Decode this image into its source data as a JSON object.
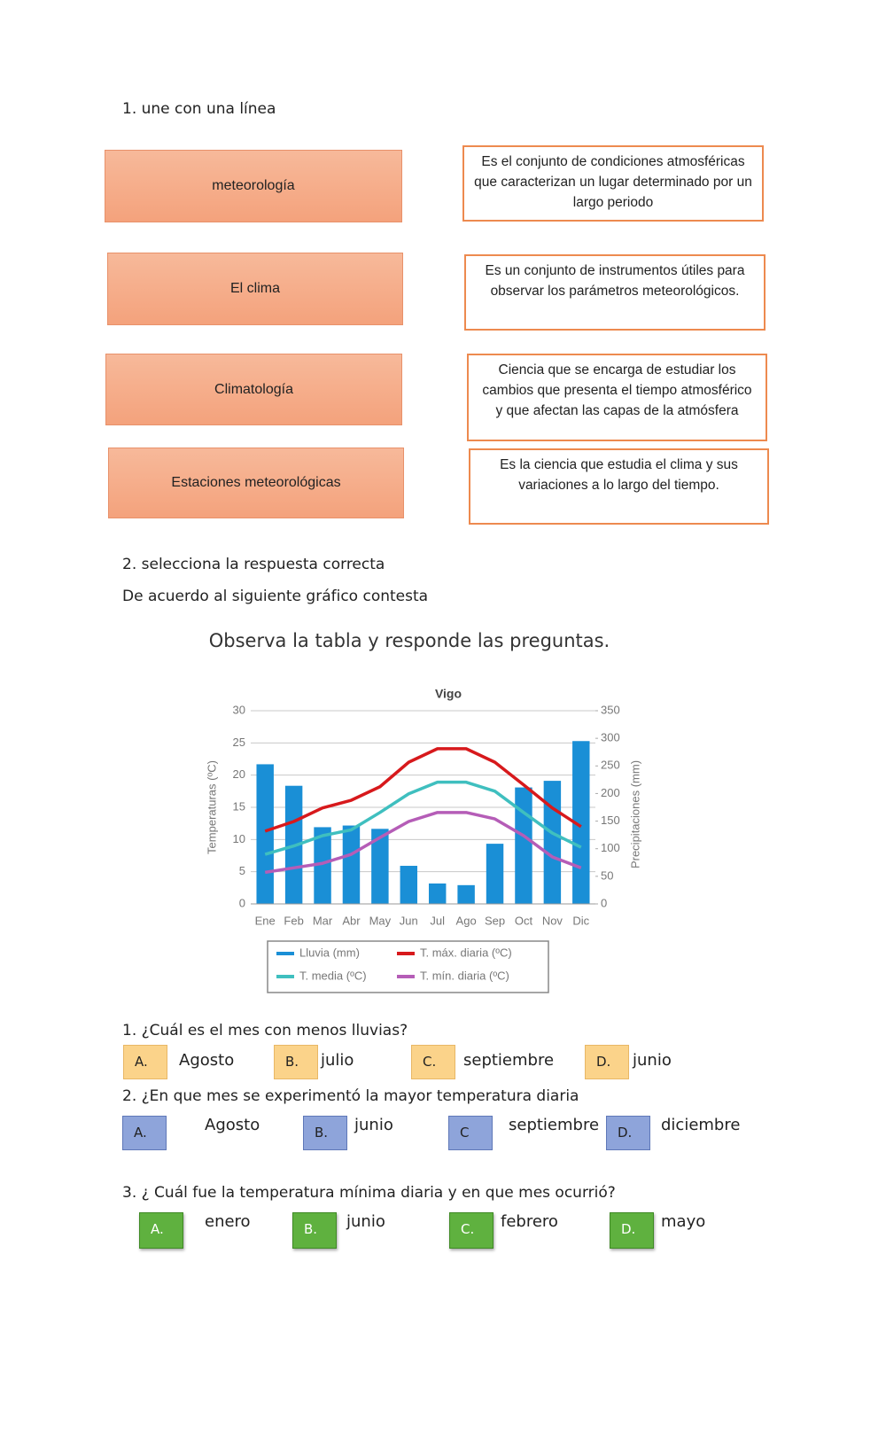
{
  "section1": {
    "title": "1. une con una línea",
    "terms": [
      "meteorología",
      "El clima",
      "Climatología",
      "Estaciones meteorológicas"
    ],
    "definitions": [
      "Es el conjunto de condiciones atmosféricas que caracterizan un lugar determinado por un largo periodo",
      "Es un conjunto de instrumentos útiles para observar los parámetros meteorológicos.",
      "Ciencia que se encarga de estudiar los cambios que presenta el tiempo atmosférico y que afectan las capas de la atmósfera",
      "Es la ciencia que estudia el clima y sus variaciones a lo largo del tiempo."
    ]
  },
  "section2": {
    "title": "2. selecciona la respuesta correcta",
    "intro": "De acuerdo al siguiente gráfico contesta",
    "chart_heading": "Observa la tabla y responde las preguntas."
  },
  "chart_data": {
    "type": "bar-line",
    "title": "Vigo",
    "ylabel": "Temperaturas (ºC)",
    "y2label": "Precipitaciones (mm)",
    "categories": [
      "Ene",
      "Feb",
      "Mar",
      "Abr",
      "May",
      "Jun",
      "Jul",
      "Ago",
      "Sep",
      "Oct",
      "Nov",
      "Dic"
    ],
    "ylim": [
      0,
      30
    ],
    "yticks": [
      0,
      5,
      10,
      15,
      20,
      25,
      30
    ],
    "y2lim": [
      0,
      350
    ],
    "y2ticks": [
      0,
      50,
      100,
      150,
      200,
      250,
      300,
      350
    ],
    "grid": true,
    "series": [
      {
        "name": "Lluvia (mm)",
        "kind": "bar",
        "axis": "y2",
        "color": "#1a8fd6",
        "values": [
          253,
          214,
          139,
          142,
          136,
          69,
          37,
          34,
          109,
          211,
          223,
          295
        ]
      },
      {
        "name": "T. máx. diaria (ºC)",
        "kind": "line",
        "color": "#d7191c",
        "values": [
          11.3,
          12.8,
          14.9,
          16.1,
          18.2,
          22,
          24.1,
          24.1,
          22,
          18.5,
          14.9,
          12
        ]
      },
      {
        "name": "T. media (ºC)",
        "kind": "line",
        "color": "#3fbfbf",
        "values": [
          7.7,
          9,
          10.6,
          11.5,
          14.2,
          17.1,
          18.9,
          18.9,
          17.5,
          14.2,
          11,
          8.8
        ]
      },
      {
        "name": "T. mín. diaria (ºC)",
        "kind": "line",
        "color": "#b55db7",
        "values": [
          4.9,
          5.6,
          6.3,
          7.7,
          10.3,
          12.8,
          14.2,
          14.2,
          13.2,
          10.6,
          7.3,
          5.6
        ]
      }
    ]
  },
  "questions": [
    {
      "text": "1. ¿Cuál es el mes con menos lluvias?",
      "options": [
        {
          "letter": "A.",
          "text": "Agosto"
        },
        {
          "letter": "B.",
          "text": "julio"
        },
        {
          "letter": "C.",
          "text": "septiembre"
        },
        {
          "letter": "D.",
          "text": "junio"
        }
      ]
    },
    {
      "text": "2. ¿En que mes se experimentó la mayor temperatura diaria",
      "options": [
        {
          "letter": "A.",
          "text": "Agosto"
        },
        {
          "letter": "B.",
          "text": "junio"
        },
        {
          "letter": "C",
          "text": "septiembre"
        },
        {
          "letter": "D.",
          "text": "diciembre"
        }
      ]
    },
    {
      "text": "3. ¿ Cuál fue la temperatura mínima diaria y en que mes ocurrió?",
      "options": [
        {
          "letter": "A.",
          "text": "enero"
        },
        {
          "letter": "B.",
          "text": "junio"
        },
        {
          "letter": "C.",
          "text": "febrero"
        },
        {
          "letter": "D.",
          "text": "mayo"
        }
      ]
    }
  ]
}
